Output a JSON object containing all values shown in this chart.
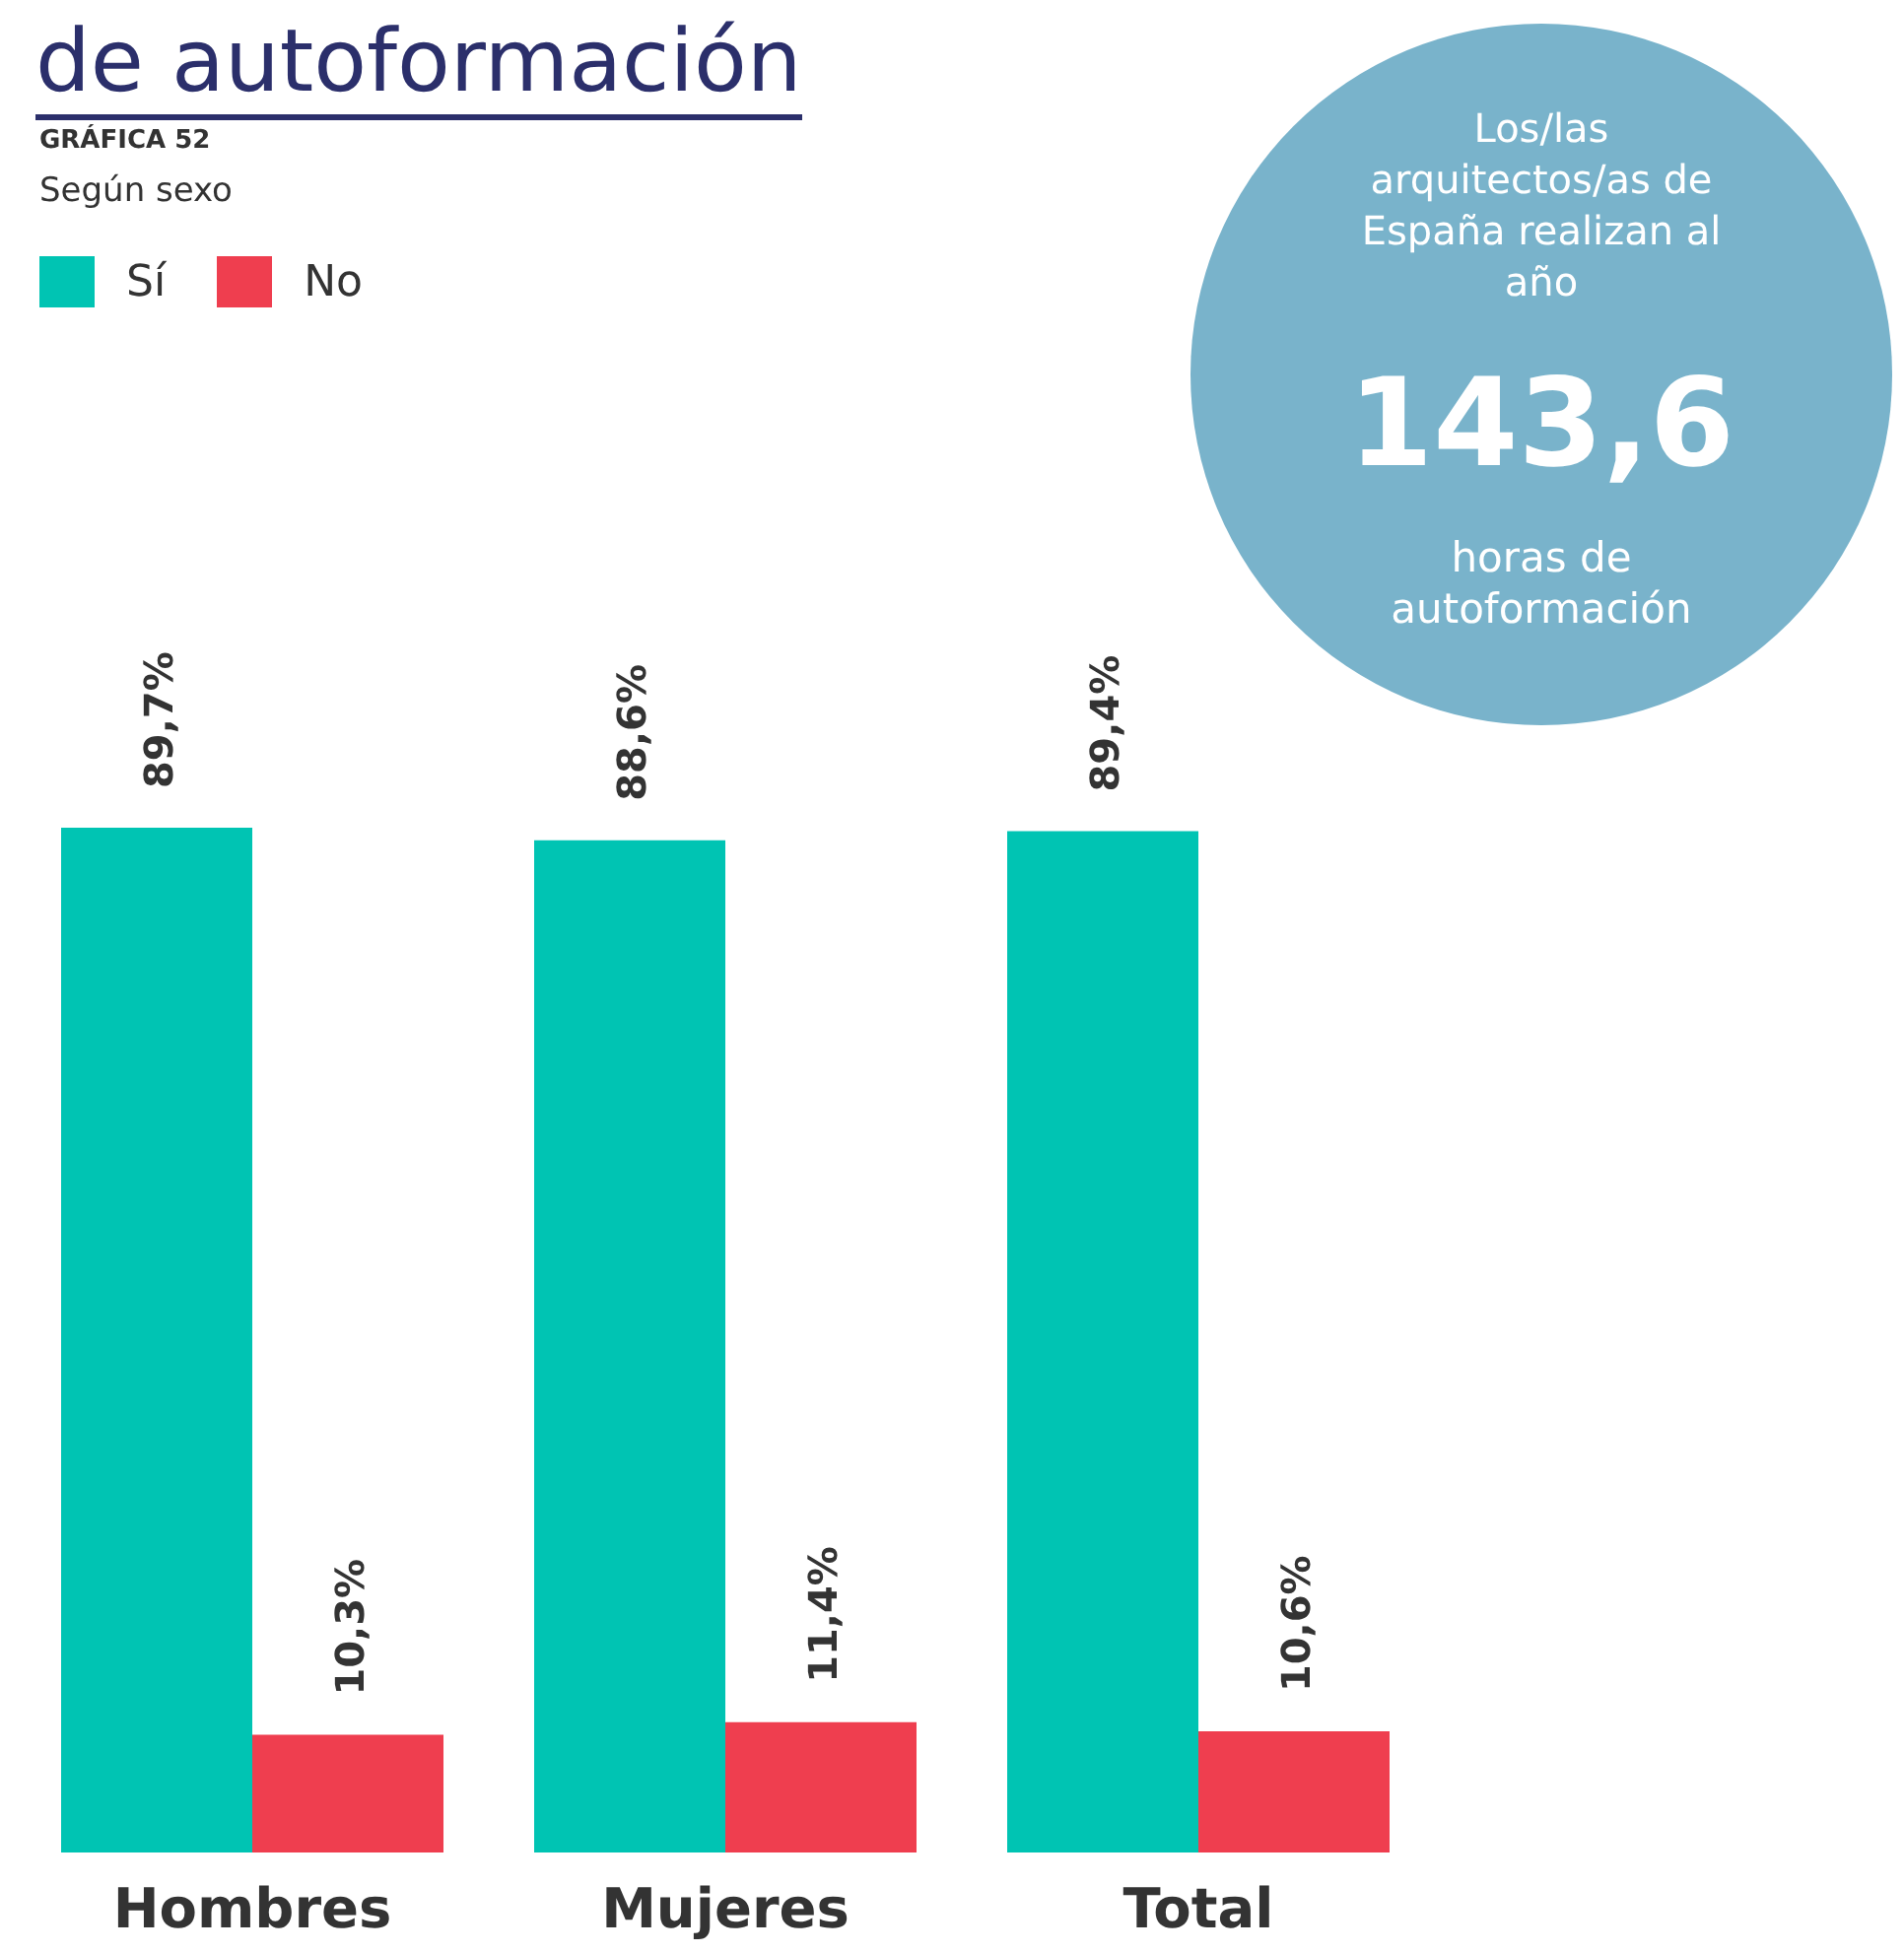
{
  "chart_data": {
    "type": "bar",
    "title": "de autoformación",
    "subtitle": "Según sexo",
    "annotations": [
      "GRÁFICA 52",
      "Los/las arquitectos/as de España realizan al año",
      "143,6",
      "horas de autoformación"
    ],
    "categories": [
      "Hombres",
      "Mujeres",
      "Total"
    ],
    "series": [
      {
        "name": "Sí",
        "color": "#00c4b3",
        "values": [
          89.7,
          88.6,
          89.4
        ],
        "value_labels": [
          "89,7%",
          "88,6%",
          "89,4%"
        ]
      },
      {
        "name": "No",
        "color": "#ef3e4f",
        "values": [
          10.3,
          11.4,
          10.6
        ],
        "value_labels": [
          "10,3%",
          "11,4%",
          "10,6%"
        ]
      }
    ],
    "data_labels": true,
    "legend": "top left",
    "grid": false
  }
}
